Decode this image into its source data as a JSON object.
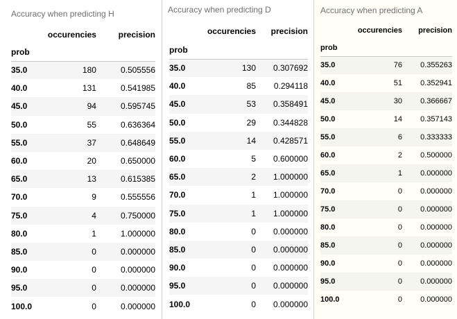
{
  "tables": [
    {
      "title": "Accuracy when predicting H",
      "index_name": "prob",
      "columns": [
        "occurencies",
        "precision"
      ],
      "rows": [
        {
          "prob": "35.0",
          "occurencies": "180",
          "precision": "0.505556"
        },
        {
          "prob": "40.0",
          "occurencies": "131",
          "precision": "0.541985"
        },
        {
          "prob": "45.0",
          "occurencies": "94",
          "precision": "0.595745"
        },
        {
          "prob": "50.0",
          "occurencies": "55",
          "precision": "0.636364"
        },
        {
          "prob": "55.0",
          "occurencies": "37",
          "precision": "0.648649"
        },
        {
          "prob": "60.0",
          "occurencies": "20",
          "precision": "0.650000"
        },
        {
          "prob": "65.0",
          "occurencies": "13",
          "precision": "0.615385"
        },
        {
          "prob": "70.0",
          "occurencies": "9",
          "precision": "0.555556"
        },
        {
          "prob": "75.0",
          "occurencies": "4",
          "precision": "0.750000"
        },
        {
          "prob": "80.0",
          "occurencies": "1",
          "precision": "1.000000"
        },
        {
          "prob": "85.0",
          "occurencies": "0",
          "precision": "0.000000"
        },
        {
          "prob": "90.0",
          "occurencies": "0",
          "precision": "0.000000"
        },
        {
          "prob": "95.0",
          "occurencies": "0",
          "precision": "0.000000"
        },
        {
          "prob": "100.0",
          "occurencies": "0",
          "precision": "0.000000"
        }
      ]
    },
    {
      "title": "Accuracy when predicting D",
      "index_name": "prob",
      "columns": [
        "occurencies",
        "precision"
      ],
      "rows": [
        {
          "prob": "35.0",
          "occurencies": "130",
          "precision": "0.307692"
        },
        {
          "prob": "40.0",
          "occurencies": "85",
          "precision": "0.294118"
        },
        {
          "prob": "45.0",
          "occurencies": "53",
          "precision": "0.358491"
        },
        {
          "prob": "50.0",
          "occurencies": "29",
          "precision": "0.344828"
        },
        {
          "prob": "55.0",
          "occurencies": "14",
          "precision": "0.428571"
        },
        {
          "prob": "60.0",
          "occurencies": "5",
          "precision": "0.600000"
        },
        {
          "prob": "65.0",
          "occurencies": "2",
          "precision": "1.000000"
        },
        {
          "prob": "70.0",
          "occurencies": "1",
          "precision": "1.000000"
        },
        {
          "prob": "75.0",
          "occurencies": "1",
          "precision": "1.000000"
        },
        {
          "prob": "80.0",
          "occurencies": "0",
          "precision": "0.000000"
        },
        {
          "prob": "85.0",
          "occurencies": "0",
          "precision": "0.000000"
        },
        {
          "prob": "90.0",
          "occurencies": "0",
          "precision": "0.000000"
        },
        {
          "prob": "95.0",
          "occurencies": "0",
          "precision": "0.000000"
        },
        {
          "prob": "100.0",
          "occurencies": "0",
          "precision": "0.000000"
        }
      ]
    },
    {
      "title": "Accuracy when predicting A",
      "index_name": "prob",
      "columns": [
        "occurencies",
        "precision"
      ],
      "rows": [
        {
          "prob": "35.0",
          "occurencies": "76",
          "precision": "0.355263"
        },
        {
          "prob": "40.0",
          "occurencies": "51",
          "precision": "0.352941"
        },
        {
          "prob": "45.0",
          "occurencies": "30",
          "precision": "0.366667"
        },
        {
          "prob": "50.0",
          "occurencies": "14",
          "precision": "0.357143"
        },
        {
          "prob": "55.0",
          "occurencies": "6",
          "precision": "0.333333"
        },
        {
          "prob": "60.0",
          "occurencies": "2",
          "precision": "0.500000"
        },
        {
          "prob": "65.0",
          "occurencies": "1",
          "precision": "0.000000"
        },
        {
          "prob": "70.0",
          "occurencies": "0",
          "precision": "0.000000"
        },
        {
          "prob": "75.0",
          "occurencies": "0",
          "precision": "0.000000"
        },
        {
          "prob": "80.0",
          "occurencies": "0",
          "precision": "0.000000"
        },
        {
          "prob": "85.0",
          "occurencies": "0",
          "precision": "0.000000"
        },
        {
          "prob": "90.0",
          "occurencies": "0",
          "precision": "0.000000"
        },
        {
          "prob": "95.0",
          "occurencies": "0",
          "precision": "0.000000"
        },
        {
          "prob": "100.0",
          "occurencies": "0",
          "precision": "0.000000"
        }
      ]
    }
  ]
}
